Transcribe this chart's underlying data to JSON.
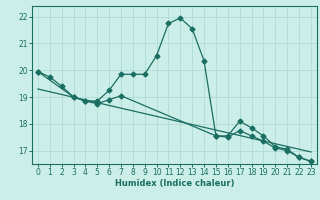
{
  "title": "",
  "xlabel": "Humidex (Indice chaleur)",
  "bg_color": "#cceee8",
  "line_color": "#1a6e62",
  "grid_color": "#aad8d0",
  "spine_color": "#1a6e62",
  "xlim": [
    -0.5,
    23.5
  ],
  "ylim": [
    16.5,
    22.4
  ],
  "yticks": [
    17,
    18,
    19,
    20,
    21,
    22
  ],
  "xticks": [
    0,
    1,
    2,
    3,
    4,
    5,
    6,
    7,
    8,
    9,
    10,
    11,
    12,
    13,
    14,
    15,
    16,
    17,
    18,
    19,
    20,
    21,
    22,
    23
  ],
  "line1_x": [
    0,
    1,
    2,
    3,
    4,
    5,
    6,
    7,
    8,
    9,
    10,
    11,
    12,
    13,
    14,
    15,
    16,
    17,
    18,
    19,
    20,
    21,
    22,
    23
  ],
  "line1_y": [
    19.95,
    19.75,
    19.4,
    19.0,
    18.85,
    18.85,
    19.25,
    19.85,
    19.85,
    19.85,
    20.55,
    21.75,
    21.95,
    21.55,
    20.35,
    17.55,
    17.55,
    18.1,
    17.85,
    17.55,
    17.15,
    17.05,
    16.75,
    16.6
  ],
  "line2_x": [
    0,
    3,
    4,
    5,
    6,
    7,
    15,
    16,
    17,
    18,
    19,
    20,
    21,
    22,
    23
  ],
  "line2_y": [
    19.95,
    19.0,
    18.85,
    18.75,
    18.9,
    19.05,
    17.55,
    17.5,
    17.75,
    17.55,
    17.35,
    17.1,
    17.0,
    16.75,
    16.6
  ],
  "line3_x": [
    0,
    23
  ],
  "line3_y": [
    19.3,
    16.95
  ],
  "marker": "D",
  "markersize": 2.5,
  "linewidth": 0.9
}
